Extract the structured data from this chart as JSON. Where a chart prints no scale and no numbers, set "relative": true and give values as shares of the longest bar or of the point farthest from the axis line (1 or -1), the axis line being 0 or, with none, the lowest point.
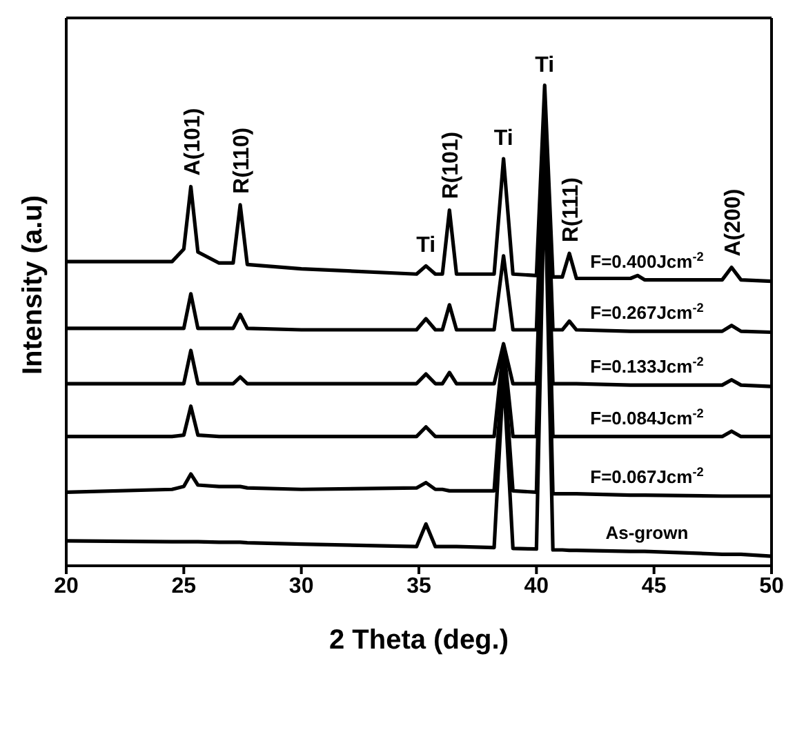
{
  "chart_data": {
    "type": "line",
    "relative": true,
    "xlabel": "2 Theta (deg.)",
    "ylabel": "Intensity (a.u)",
    "xlim": [
      20,
      50
    ],
    "xticks": [
      20,
      25,
      30,
      35,
      40,
      45,
      50
    ],
    "legend": false,
    "marker": "none",
    "line_style": "solid",
    "grid": false,
    "x": [
      20,
      24.5,
      25.0,
      25.3,
      25.6,
      26.5,
      27.1,
      27.4,
      27.7,
      30,
      34.9,
      35.3,
      35.7,
      36.0,
      36.3,
      36.6,
      38.2,
      38.6,
      39.0,
      40.0,
      40.35,
      40.7,
      41.1,
      41.4,
      41.7,
      44.0,
      44.3,
      44.6,
      47.9,
      48.3,
      48.7,
      50
    ],
    "series": [
      {
        "name": "F=0.400Jcm$^{-2}$",
        "color": "#000000",
        "values": [
          0.633,
          0.633,
          0.659,
          0.789,
          0.653,
          0.63,
          0.63,
          0.751,
          0.627,
          0.618,
          0.607,
          0.624,
          0.607,
          0.607,
          0.74,
          0.607,
          0.607,
          0.847,
          0.607,
          0.604,
          1.0,
          0.601,
          0.601,
          0.65,
          0.598,
          0.598,
          0.604,
          0.595,
          0.595,
          0.621,
          0.595,
          0.592
        ]
      },
      {
        "name": "F=0.267Jcm$^{-2}$",
        "color": "#000000",
        "values": [
          0.494,
          0.494,
          0.494,
          0.566,
          0.494,
          0.494,
          0.494,
          0.523,
          0.494,
          0.491,
          0.491,
          0.514,
          0.491,
          0.491,
          0.543,
          0.491,
          0.491,
          0.645,
          0.491,
          0.491,
          0.962,
          0.491,
          0.491,
          0.509,
          0.491,
          0.488,
          0.488,
          0.488,
          0.488,
          0.5,
          0.488,
          0.486
        ]
      },
      {
        "name": "F=0.133Jcm$^{-2}$",
        "color": "#000000",
        "values": [
          0.379,
          0.379,
          0.379,
          0.448,
          0.379,
          0.379,
          0.379,
          0.393,
          0.379,
          0.379,
          0.379,
          0.399,
          0.379,
          0.379,
          0.402,
          0.379,
          0.379,
          0.462,
          0.379,
          0.379,
          0.919,
          0.379,
          0.379,
          0.379,
          0.379,
          0.376,
          0.376,
          0.376,
          0.376,
          0.387,
          0.376,
          0.373
        ]
      },
      {
        "name": "F=0.084Jcm$^{-2}$",
        "color": "#000000",
        "values": [
          0.269,
          0.269,
          0.272,
          0.332,
          0.272,
          0.269,
          0.269,
          0.269,
          0.269,
          0.269,
          0.269,
          0.289,
          0.269,
          0.269,
          0.269,
          0.269,
          0.269,
          0.457,
          0.269,
          0.269,
          0.89,
          0.269,
          0.269,
          0.269,
          0.269,
          0.269,
          0.269,
          0.269,
          0.269,
          0.28,
          0.269,
          0.269
        ]
      },
      {
        "name": "F=0.067Jcm$^{-2}$",
        "color": "#000000",
        "values": [
          0.153,
          0.159,
          0.165,
          0.191,
          0.168,
          0.165,
          0.165,
          0.165,
          0.162,
          0.159,
          0.162,
          0.173,
          0.159,
          0.159,
          0.156,
          0.156,
          0.156,
          0.428,
          0.156,
          0.153,
          0.861,
          0.15,
          0.15,
          0.15,
          0.15,
          0.147,
          0.147,
          0.147,
          0.145,
          0.145,
          0.145,
          0.145
        ]
      },
      {
        "name": "As-grown",
        "color": "#000000",
        "values": [
          0.052,
          0.05,
          0.05,
          0.05,
          0.05,
          0.049,
          0.049,
          0.049,
          0.048,
          0.045,
          0.04,
          0.087,
          0.04,
          0.04,
          0.04,
          0.04,
          0.038,
          0.399,
          0.036,
          0.035,
          0.832,
          0.033,
          0.033,
          0.032,
          0.032,
          0.03,
          0.03,
          0.03,
          0.024,
          0.024,
          0.024,
          0.02
        ]
      }
    ],
    "annotations": [
      {
        "text": "A(101)",
        "x": 25.3,
        "y": 0.789
      },
      {
        "text": "R(110)",
        "x": 27.4,
        "y": 0.751
      },
      {
        "text": "Ti",
        "x": 35.3,
        "y": 0.624
      },
      {
        "text": "R(101)",
        "x": 36.3,
        "y": 0.74
      },
      {
        "text": "Ti",
        "x": 38.6,
        "y": 0.847
      },
      {
        "text": "Ti",
        "x": 40.35,
        "y": 1.0
      },
      {
        "text": "R(111)",
        "x": 41.4,
        "y": 0.65
      },
      {
        "text": "A(200)",
        "x": 48.3,
        "y": 0.621
      }
    ]
  }
}
